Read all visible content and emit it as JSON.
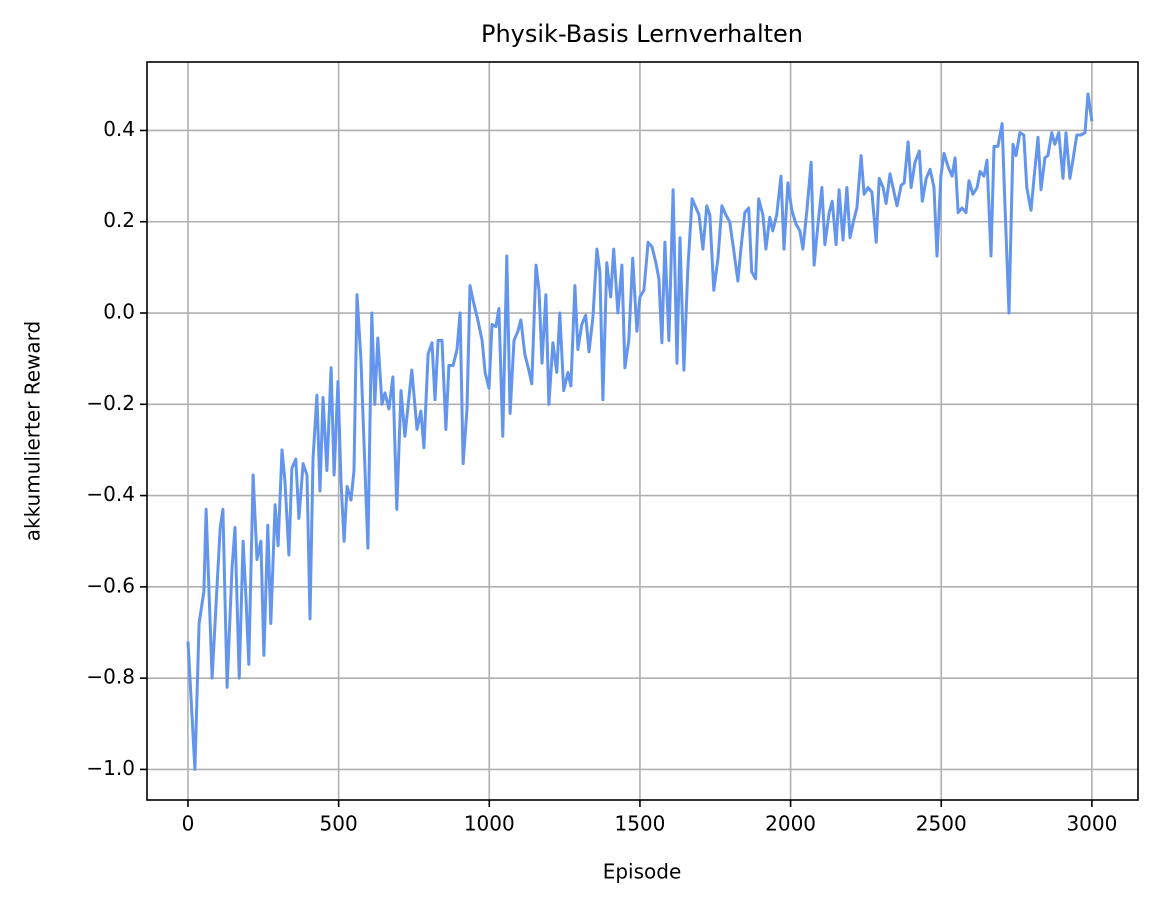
{
  "chart_data": {
    "type": "line",
    "title": "Physik-Basis Lernverhalten",
    "xlabel": "Episode",
    "ylabel": "akkumulierter Reward",
    "x": [
      0,
      23,
      37,
      53,
      60,
      80,
      107,
      116,
      130,
      146,
      156,
      170,
      183,
      193,
      202,
      216,
      229,
      242,
      252,
      265,
      275,
      289,
      299,
      312,
      322,
      335,
      345,
      358,
      368,
      382,
      395,
      405,
      415,
      428,
      438,
      448,
      461,
      475,
      485,
      498,
      508,
      518,
      528,
      541,
      551,
      561,
      574,
      597,
      610,
      620,
      630,
      644,
      654,
      667,
      680,
      693,
      707,
      720,
      743,
      760,
      773,
      783,
      797,
      810,
      820,
      830,
      843,
      856,
      866,
      880,
      893,
      903,
      913,
      926,
      936,
      949,
      962,
      976,
      986,
      999,
      1009,
      1022,
      1032,
      1045,
      1058,
      1069,
      1082,
      1095,
      1105,
      1118,
      1131,
      1141,
      1155,
      1165,
      1175,
      1188,
      1198,
      1211,
      1224,
      1234,
      1247,
      1261,
      1271,
      1284,
      1294,
      1307,
      1320,
      1331,
      1344,
      1357,
      1367,
      1377,
      1390,
      1403,
      1413,
      1427,
      1440,
      1450,
      1463,
      1476,
      1490,
      1500,
      1513,
      1527,
      1540,
      1553,
      1563,
      1573,
      1583,
      1596,
      1610,
      1623,
      1633,
      1646,
      1659,
      1673,
      1683,
      1696,
      1709,
      1722,
      1732,
      1745,
      1759,
      1772,
      1785,
      1798,
      1812,
      1825,
      1835,
      1848,
      1861,
      1871,
      1884,
      1894,
      1908,
      1918,
      1931,
      1941,
      1954,
      1968,
      1978,
      1991,
      2004,
      2018,
      2031,
      2041,
      2054,
      2068,
      2078,
      2091,
      2104,
      2114,
      2128,
      2138,
      2151,
      2161,
      2174,
      2187,
      2197,
      2210,
      2220,
      2234,
      2244,
      2257,
      2270,
      2284,
      2294,
      2307,
      2317,
      2330,
      2340,
      2353,
      2367,
      2377,
      2390,
      2400,
      2413,
      2427,
      2437,
      2450,
      2463,
      2476,
      2486,
      2499,
      2509,
      2523,
      2536,
      2546,
      2556,
      2569,
      2582,
      2592,
      2605,
      2619,
      2629,
      2642,
      2652,
      2665,
      2675,
      2688,
      2702,
      2711,
      2725,
      2738,
      2748,
      2761,
      2774,
      2784,
      2798,
      2808,
      2821,
      2831,
      2844,
      2854,
      2867,
      2877,
      2890,
      2904,
      2914,
      2927,
      2937,
      2950,
      2963,
      2977,
      2987,
      3000
    ],
    "series": [
      {
        "name": "akkumulierter Reward",
        "color": "#6495ed",
        "values": [
          -0.72,
          -1.0,
          -0.68,
          -0.61,
          -0.43,
          -0.8,
          -0.47,
          -0.43,
          -0.82,
          -0.56,
          -0.47,
          -0.8,
          -0.5,
          -0.63,
          -0.77,
          -0.355,
          -0.54,
          -0.5,
          -0.75,
          -0.465,
          -0.68,
          -0.42,
          -0.51,
          -0.3,
          -0.37,
          -0.53,
          -0.34,
          -0.32,
          -0.45,
          -0.33,
          -0.355,
          -0.67,
          -0.32,
          -0.18,
          -0.39,
          -0.185,
          -0.345,
          -0.12,
          -0.355,
          -0.15,
          -0.37,
          -0.5,
          -0.38,
          -0.41,
          -0.345,
          0.04,
          -0.1,
          -0.515,
          0.0,
          -0.2,
          -0.055,
          -0.2,
          -0.175,
          -0.21,
          -0.14,
          -0.43,
          -0.17,
          -0.27,
          -0.125,
          -0.255,
          -0.215,
          -0.295,
          -0.09,
          -0.065,
          -0.19,
          -0.06,
          -0.06,
          -0.255,
          -0.115,
          -0.115,
          -0.08,
          0.0,
          -0.33,
          -0.21,
          0.06,
          0.02,
          -0.015,
          -0.06,
          -0.13,
          -0.165,
          -0.025,
          -0.03,
          0.01,
          -0.27,
          0.125,
          -0.22,
          -0.06,
          -0.04,
          -0.015,
          -0.09,
          -0.125,
          -0.155,
          0.105,
          0.05,
          -0.11,
          0.04,
          -0.2,
          -0.065,
          -0.13,
          0.0,
          -0.17,
          -0.13,
          -0.16,
          0.06,
          -0.08,
          -0.025,
          -0.005,
          -0.085,
          -0.01,
          0.14,
          0.09,
          -0.19,
          0.11,
          0.035,
          0.14,
          0.0,
          0.105,
          -0.12,
          -0.06,
          0.12,
          -0.04,
          0.035,
          0.05,
          0.155,
          0.145,
          0.11,
          0.075,
          -0.065,
          0.155,
          -0.06,
          0.27,
          -0.11,
          0.165,
          -0.125,
          0.095,
          0.25,
          0.235,
          0.215,
          0.14,
          0.235,
          0.215,
          0.05,
          0.12,
          0.235,
          0.215,
          0.2,
          0.135,
          0.07,
          0.14,
          0.22,
          0.23,
          0.09,
          0.075,
          0.25,
          0.215,
          0.14,
          0.21,
          0.18,
          0.215,
          0.3,
          0.14,
          0.285,
          0.225,
          0.195,
          0.18,
          0.14,
          0.225,
          0.33,
          0.105,
          0.195,
          0.275,
          0.15,
          0.22,
          0.245,
          0.15,
          0.27,
          0.16,
          0.275,
          0.165,
          0.205,
          0.23,
          0.345,
          0.26,
          0.275,
          0.265,
          0.155,
          0.295,
          0.275,
          0.24,
          0.305,
          0.275,
          0.235,
          0.28,
          0.285,
          0.375,
          0.275,
          0.33,
          0.355,
          0.245,
          0.295,
          0.315,
          0.275,
          0.125,
          0.3,
          0.35,
          0.32,
          0.3,
          0.34,
          0.22,
          0.23,
          0.22,
          0.29,
          0.26,
          0.275,
          0.31,
          0.3,
          0.335,
          0.125,
          0.365,
          0.365,
          0.415,
          0.245,
          0.0,
          0.37,
          0.345,
          0.395,
          0.39,
          0.275,
          0.225,
          0.295,
          0.385,
          0.27,
          0.34,
          0.345,
          0.395,
          0.37,
          0.395,
          0.295,
          0.395,
          0.295,
          0.335,
          0.39,
          0.39,
          0.395,
          0.48,
          0.42
        ]
      }
    ],
    "xlim": [
      -136,
      3153
    ],
    "ylim": [
      -1.067,
      0.55
    ],
    "xticks": [
      0,
      500,
      1000,
      1500,
      2000,
      2500,
      3000
    ],
    "yticks": [
      {
        "value": -1.0,
        "label": "−1.0"
      },
      {
        "value": -0.8,
        "label": "−0.8"
      },
      {
        "value": -0.6,
        "label": "−0.6"
      },
      {
        "value": -0.4,
        "label": "−0.4"
      },
      {
        "value": -0.2,
        "label": "−0.2"
      },
      {
        "value": 0,
        "label": "0.0"
      },
      0.2,
      0.4
    ],
    "grid": true
  }
}
